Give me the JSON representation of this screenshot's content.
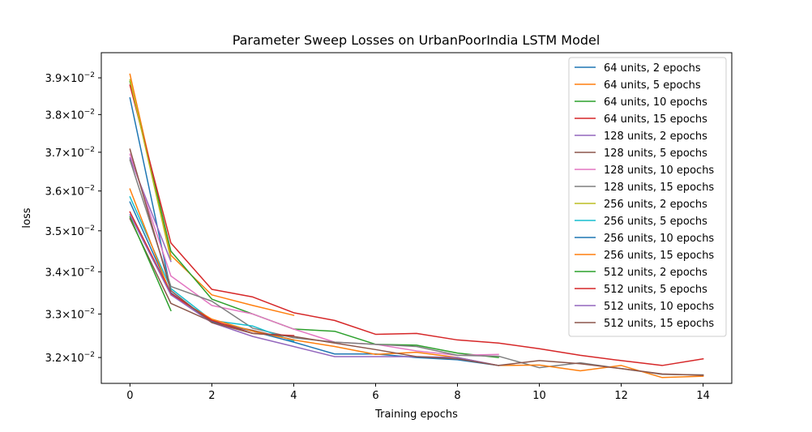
{
  "chart_data": {
    "type": "line",
    "title": "Parameter Sweep Losses on UrbanPoorIndia LSTM Model",
    "xlabel": "Training epochs",
    "ylabel": "loss",
    "xlim": [
      -0.7,
      14.7
    ],
    "ylim": [
      0.03142,
      0.0397
    ],
    "yscale": "log",
    "grid": false,
    "legend_position": "top-right",
    "x_ticks": [
      0,
      2,
      4,
      6,
      8,
      10,
      12,
      14
    ],
    "x_tick_labels": [
      "0",
      "2",
      "4",
      "6",
      "8",
      "10",
      "12",
      "14"
    ],
    "y_ticks": [
      {
        "value": 0.032,
        "mantissa": "3.2",
        "exp": "−2"
      },
      {
        "value": 0.033,
        "mantissa": "3.3",
        "exp": "−2"
      },
      {
        "value": 0.034,
        "mantissa": "3.4",
        "exp": "−2"
      },
      {
        "value": 0.035,
        "mantissa": "3.5",
        "exp": "−2"
      },
      {
        "value": 0.036,
        "mantissa": "3.6",
        "exp": "−2"
      },
      {
        "value": 0.037,
        "mantissa": "3.7",
        "exp": "−2"
      },
      {
        "value": 0.038,
        "mantissa": "3.8",
        "exp": "−2"
      },
      {
        "value": 0.039,
        "mantissa": "3.9",
        "exp": "−2"
      }
    ],
    "y_tick_base": "10",
    "series": [
      {
        "name": "64 units, 2 epochs",
        "color": "#1f77b4",
        "x": [
          0,
          1
        ],
        "values": [
          0.03845,
          0.03355
        ]
      },
      {
        "name": "64 units, 5 epochs",
        "color": "#ff7f0e",
        "x": [
          0,
          1,
          2,
          3,
          4
        ],
        "values": [
          0.0391,
          0.0344,
          0.03345,
          0.0332,
          0.03297
        ]
      },
      {
        "name": "64 units, 10 epochs",
        "color": "#2ca02c",
        "x": [
          0,
          1,
          2,
          3,
          4,
          5,
          6,
          7,
          8,
          9
        ],
        "values": [
          0.0389,
          0.0345,
          0.03335,
          0.033,
          0.03265,
          0.0326,
          0.0323,
          0.03228,
          0.0321,
          0.032
        ]
      },
      {
        "name": "64 units, 15 epochs",
        "color": "#d62728",
        "x": [
          0,
          1,
          2,
          3,
          4,
          5,
          6,
          7,
          8,
          9,
          10,
          11,
          12,
          13,
          14
        ],
        "values": [
          0.0388,
          0.0347,
          0.03358,
          0.0334,
          0.03303,
          0.03285,
          0.03253,
          0.03255,
          0.0324,
          0.03233,
          0.0322,
          0.03205,
          0.03193,
          0.03182,
          0.03197
        ]
      },
      {
        "name": "128 units, 2 epochs",
        "color": "#9467bd",
        "x": [
          0,
          1
        ],
        "values": [
          0.03685,
          0.03425
        ]
      },
      {
        "name": "128 units, 5 epochs",
        "color": "#8c564b",
        "x": [
          0,
          1,
          2,
          3,
          4
        ],
        "values": [
          0.0353,
          0.03325,
          0.03282,
          0.03262,
          0.0324
        ]
      },
      {
        "name": "128 units, 10 epochs",
        "color": "#e377c2",
        "x": [
          0,
          1,
          2,
          3,
          4,
          5,
          6,
          7,
          8,
          9
        ],
        "values": [
          0.03695,
          0.0339,
          0.0332,
          0.033,
          0.03265,
          0.03235,
          0.0323,
          0.03215,
          0.03205,
          0.03207
        ]
      },
      {
        "name": "128 units, 15 epochs",
        "color": "#7f7f7f",
        "x": [
          0,
          1,
          2,
          3,
          4,
          5,
          6,
          7,
          8,
          9,
          10,
          11,
          12,
          13,
          14
        ],
        "values": [
          0.0368,
          0.03365,
          0.0333,
          0.03267,
          0.03245,
          0.03235,
          0.0323,
          0.03225,
          0.03205,
          0.03203,
          0.03177,
          0.03188,
          0.03175,
          0.03162,
          0.03161
        ]
      },
      {
        "name": "256 units, 2 epochs",
        "color": "#bcbd22",
        "x": [
          0,
          1
        ],
        "values": [
          0.03895,
          0.0343
        ]
      },
      {
        "name": "256 units, 5 epochs",
        "color": "#17becf",
        "x": [
          0,
          1,
          2,
          3,
          4
        ],
        "values": [
          0.03585,
          0.0336,
          0.03285,
          0.03272,
          0.03237
        ]
      },
      {
        "name": "256 units, 10 epochs",
        "color": "#1f77b4",
        "x": [
          0,
          1,
          2,
          3,
          4,
          5,
          6,
          7,
          8,
          9
        ],
        "values": [
          0.03572,
          0.0335,
          0.03282,
          0.0326,
          0.03235,
          0.03208,
          0.03208,
          0.032,
          0.03195,
          0.03182
        ]
      },
      {
        "name": "256 units, 15 epochs",
        "color": "#ff7f0e",
        "x": [
          0,
          1,
          2,
          3,
          4,
          5,
          6,
          7,
          8,
          9,
          10,
          11,
          12,
          13,
          14
        ],
        "values": [
          0.03605,
          0.03345,
          0.03288,
          0.0326,
          0.0324,
          0.03225,
          0.03207,
          0.03212,
          0.032,
          0.03182,
          0.03183,
          0.0317,
          0.03182,
          0.03155,
          0.03158
        ]
      },
      {
        "name": "512 units, 2 epochs",
        "color": "#2ca02c",
        "x": [
          0,
          1
        ],
        "values": [
          0.03535,
          0.03308
        ]
      },
      {
        "name": "512 units, 5 epochs",
        "color": "#d62728",
        "x": [
          0,
          1,
          2,
          3,
          4
        ],
        "values": [
          0.03547,
          0.03348,
          0.03285,
          0.03255,
          0.0325
        ]
      },
      {
        "name": "512 units, 10 epochs",
        "color": "#9467bd",
        "x": [
          0,
          1,
          2,
          3,
          4,
          5,
          6,
          7,
          8,
          9
        ],
        "values": [
          0.0354,
          0.03345,
          0.0328,
          0.03248,
          0.03225,
          0.03202,
          0.03202,
          0.03202,
          0.032,
          0.03182
        ]
      },
      {
        "name": "512 units, 15 epochs",
        "color": "#8c564b",
        "x": [
          0,
          1,
          2,
          3,
          4,
          5,
          6,
          7,
          8,
          9,
          10,
          11,
          12,
          13,
          14
        ],
        "values": [
          0.03708,
          0.03355,
          0.0328,
          0.03255,
          0.03248,
          0.03233,
          0.03218,
          0.03202,
          0.03197,
          0.03182,
          0.03193,
          0.03186,
          0.03175,
          0.03163,
          0.0316
        ]
      }
    ]
  }
}
